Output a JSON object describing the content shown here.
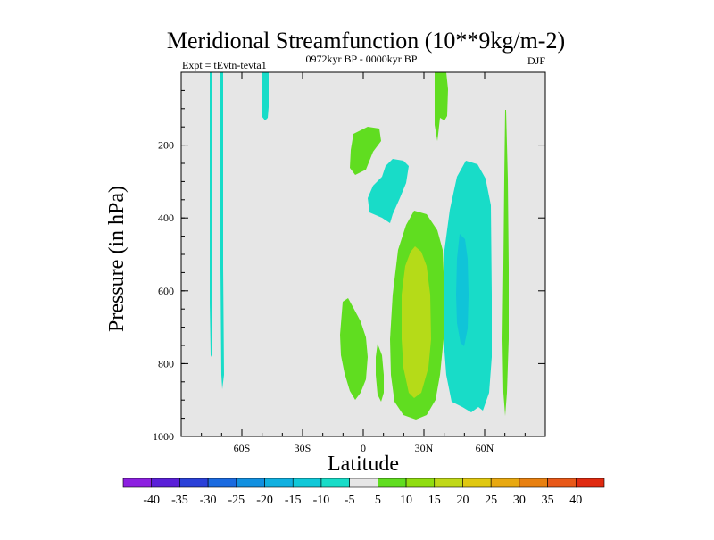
{
  "chart_data": {
    "type": "contour",
    "title": "Meridional Streamfunction (10**9kg/m-2)",
    "left_label": "Expt = tEvtn-tevta1",
    "center_label": "0972kyr BP - 0000kyr BP",
    "right_label": "DJF",
    "xlabel": "Latitude",
    "ylabel": "Pressure (in hPa)",
    "xlim": [
      -90,
      90
    ],
    "ylim": [
      1000,
      0
    ],
    "x_ticks": [
      {
        "value": -60,
        "label": "60S"
      },
      {
        "value": -30,
        "label": "30S"
      },
      {
        "value": 0,
        "label": "0"
      },
      {
        "value": 30,
        "label": "30N"
      },
      {
        "value": 60,
        "label": "60N"
      }
    ],
    "y_ticks": [
      {
        "value": 200,
        "label": "200"
      },
      {
        "value": 400,
        "label": "400"
      },
      {
        "value": 600,
        "label": "600"
      },
      {
        "value": 800,
        "label": "800"
      },
      {
        "value": 1000,
        "label": "1000"
      }
    ],
    "colorbar": {
      "labels": [
        "-40",
        "-35",
        "-30",
        "-25",
        "-20",
        "-15",
        "-10",
        "-5",
        "5",
        "10",
        "15",
        "20",
        "25",
        "30",
        "35",
        "40"
      ],
      "colors": [
        "#8c1fe0",
        "#5a1fd8",
        "#2a40d8",
        "#1a6ae0",
        "#1190e0",
        "#10b0e0",
        "#10c8d8",
        "#18dcc8",
        "#e6e6e6",
        "#60dd20",
        "#90dd10",
        "#c0d818",
        "#e0c810",
        "#e8a810",
        "#e88010",
        "#e85818",
        "#e02a10"
      ]
    },
    "features": [
      {
        "name": "cyan streak near 72S",
        "level": "-10 to -5",
        "lat_range": [
          -74,
          -72
        ],
        "p_range": [
          0,
          780
        ]
      },
      {
        "name": "cyan streak near 68S",
        "level": "-10 to -5",
        "lat_range": [
          -69,
          -67
        ],
        "p_range": [
          0,
          870
        ]
      },
      {
        "name": "cyan blob near 48S aloft",
        "level": "-10 to -5",
        "lat_range": [
          -50,
          -47
        ],
        "p_range": [
          0,
          130
        ]
      },
      {
        "name": "green upper cell",
        "level": "5 to 10",
        "lat_range": [
          -6,
          8
        ],
        "p_range": [
          150,
          280
        ]
      },
      {
        "name": "cyan upper patch",
        "level": "-10 to -5",
        "lat_range": [
          4,
          20
        ],
        "p_range": [
          230,
          400
        ]
      },
      {
        "name": "green lower cell near equator",
        "level": "5 to 10",
        "lat_range": [
          -10,
          2
        ],
        "p_range": [
          620,
          900
        ]
      },
      {
        "name": "green thin cell near 8N",
        "level": "5 to 10",
        "lat_range": [
          6,
          10
        ],
        "p_range": [
          740,
          880
        ]
      },
      {
        "name": "green main cell 30N",
        "level": "5 to 10",
        "lat_range": [
          18,
          40
        ],
        "p_range": [
          380,
          960
        ]
      },
      {
        "name": "yellow-green core 30N",
        "level": "10 to 15",
        "lat_range": [
          23,
          35
        ],
        "p_range": [
          470,
          850
        ]
      },
      {
        "name": "green top near 40N",
        "level": "5 to 10",
        "lat_range": [
          35,
          43
        ],
        "p_range": [
          0,
          180
        ]
      },
      {
        "name": "cyan cell 50N",
        "level": "-10 to -5",
        "lat_range": [
          40,
          63
        ],
        "p_range": [
          290,
          950
        ]
      },
      {
        "name": "cyan core 50N",
        "level": "-15 to -10",
        "lat_range": [
          48,
          53
        ],
        "p_range": [
          440,
          720
        ]
      },
      {
        "name": "green streak 71N",
        "level": "5 to 10",
        "lat_range": [
          70,
          72
        ],
        "p_range": [
          80,
          950
        ]
      }
    ]
  }
}
